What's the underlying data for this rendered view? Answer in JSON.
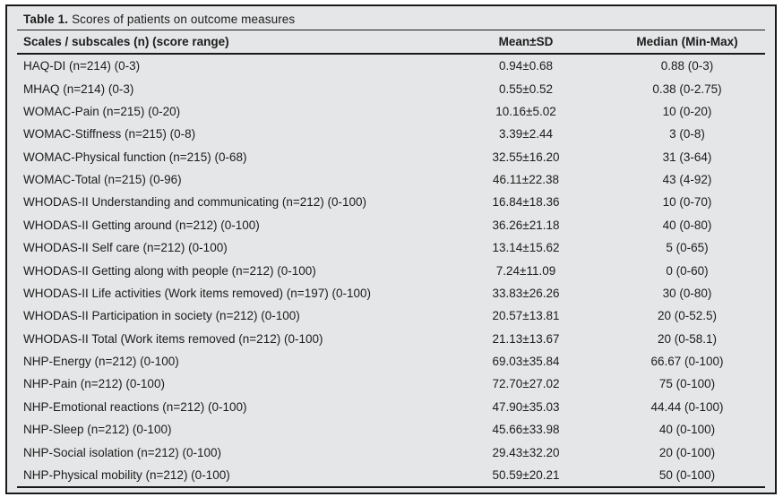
{
  "table": {
    "title_label": "Table 1.",
    "title_text": "Scores of patients on outcome measures",
    "columns": {
      "scale": "Scales / subscales (n) (score range)",
      "mean_sd": "Mean±SD",
      "median": "Median (Min-Max)"
    },
    "rows": [
      {
        "scale": "HAQ-DI (n=214) (0-3)",
        "mean_sd": "0.94±0.68",
        "median": "0.88 (0-3)"
      },
      {
        "scale": "MHAQ (n=214) (0-3)",
        "mean_sd": "0.55±0.52",
        "median": "0.38 (0-2.75)"
      },
      {
        "scale": "WOMAC-Pain (n=215) (0-20)",
        "mean_sd": "10.16±5.02",
        "median": "10 (0-20)"
      },
      {
        "scale": "WOMAC-Stiffness (n=215) (0-8)",
        "mean_sd": "3.39±2.44",
        "median": "3 (0-8)"
      },
      {
        "scale": "WOMAC-Physical function (n=215) (0-68)",
        "mean_sd": "32.55±16.20",
        "median": "31 (3-64)"
      },
      {
        "scale": "WOMAC-Total (n=215) (0-96)",
        "mean_sd": "46.11±22.38",
        "median": "43 (4-92)"
      },
      {
        "scale": "WHODAS-II Understanding and communicating (n=212) (0-100)",
        "mean_sd": "16.84±18.36",
        "median": "10 (0-70)"
      },
      {
        "scale": "WHODAS-II Getting around (n=212) (0-100)",
        "mean_sd": "36.26±21.18",
        "median": "40 (0-80)"
      },
      {
        "scale": "WHODAS-II Self care (n=212) (0-100)",
        "mean_sd": "13.14±15.62",
        "median": "5 (0-65)"
      },
      {
        "scale": "WHODAS-II Getting along with people (n=212) (0-100)",
        "mean_sd": "7.24±11.09",
        "median": "0 (0-60)"
      },
      {
        "scale": "WHODAS-II Life activities (Work items removed) (n=197) (0-100)",
        "mean_sd": "33.83±26.26",
        "median": "30 (0-80)"
      },
      {
        "scale": "WHODAS-II Participation in society (n=212) (0-100)",
        "mean_sd": "20.57±13.81",
        "median": "20 (0-52.5)"
      },
      {
        "scale": "WHODAS-II Total (Work items removed (n=212) (0-100)",
        "mean_sd": "21.13±13.67",
        "median": "20 (0-58.1)"
      },
      {
        "scale": "NHP-Energy (n=212) (0-100)",
        "mean_sd": "69.03±35.84",
        "median": "66.67 (0-100)"
      },
      {
        "scale": "NHP-Pain (n=212) (0-100)",
        "mean_sd": "72.70±27.02",
        "median": "75 (0-100)"
      },
      {
        "scale": "NHP-Emotional reactions (n=212) (0-100)",
        "mean_sd": "47.90±35.03",
        "median": "44.44 (0-100)"
      },
      {
        "scale": "NHP-Sleep (n=212) (0-100)",
        "mean_sd": "45.66±33.98",
        "median": "40 (0-100)"
      },
      {
        "scale": "NHP-Social isolation (n=212) (0-100)",
        "mean_sd": "29.43±32.20",
        "median": "20 (0-100)"
      },
      {
        "scale": "NHP-Physical mobility (n=212) (0-100)",
        "mean_sd": "50.59±20.21",
        "median": "50 (0-100)"
      }
    ]
  },
  "colors": {
    "panel_background": "#e5e6e7",
    "border": "#1a1a1a",
    "text": "#1c1c1c"
  }
}
